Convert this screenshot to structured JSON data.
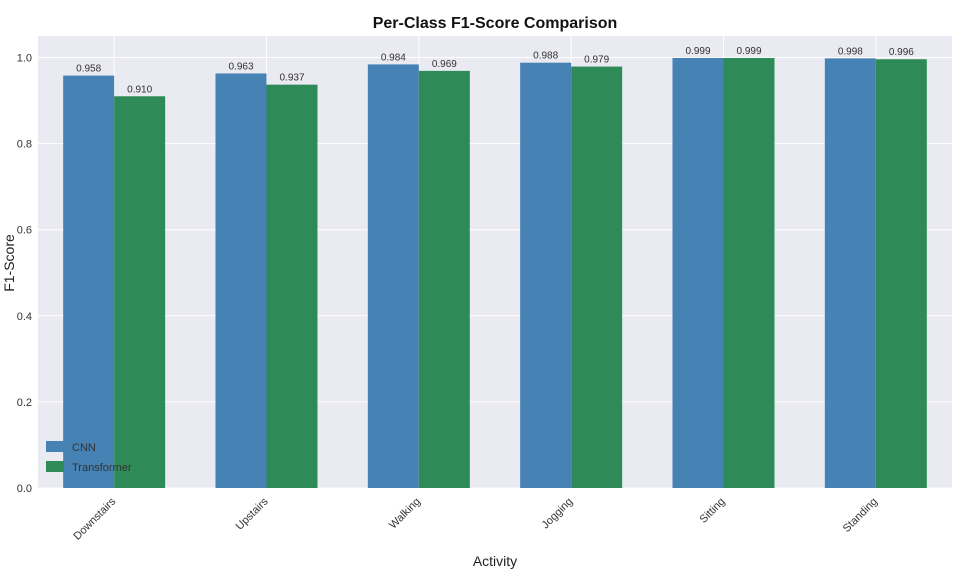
{
  "chart_data": {
    "type": "bar",
    "title": "Per-Class F1-Score Comparison",
    "xlabel": "Activity",
    "ylabel": "F1-Score",
    "categories": [
      "Downstairs",
      "Upstairs",
      "Walking",
      "Jogging",
      "Sitting",
      "Standing"
    ],
    "series": [
      {
        "name": "CNN",
        "values": [
          0.958,
          0.963,
          0.984,
          0.988,
          0.999,
          0.998
        ],
        "color": "#4682b4"
      },
      {
        "name": "Transformer",
        "values": [
          0.91,
          0.937,
          0.969,
          0.979,
          0.999,
          0.996
        ],
        "color": "#2e8b57"
      }
    ],
    "value_labels": [
      [
        "0.958",
        "0.963",
        "0.984",
        "0.988",
        "0.999",
        "0.998"
      ],
      [
        "0.910",
        "0.937",
        "0.969",
        "0.979",
        "0.999",
        "0.996"
      ]
    ],
    "ylim": [
      0,
      1.05
    ],
    "yticks": [
      "0.0",
      "0.2",
      "0.4",
      "0.6",
      "0.8",
      "1.0"
    ],
    "grid": true,
    "legend": "lower-left",
    "plot_background": "#eaeaf2"
  }
}
